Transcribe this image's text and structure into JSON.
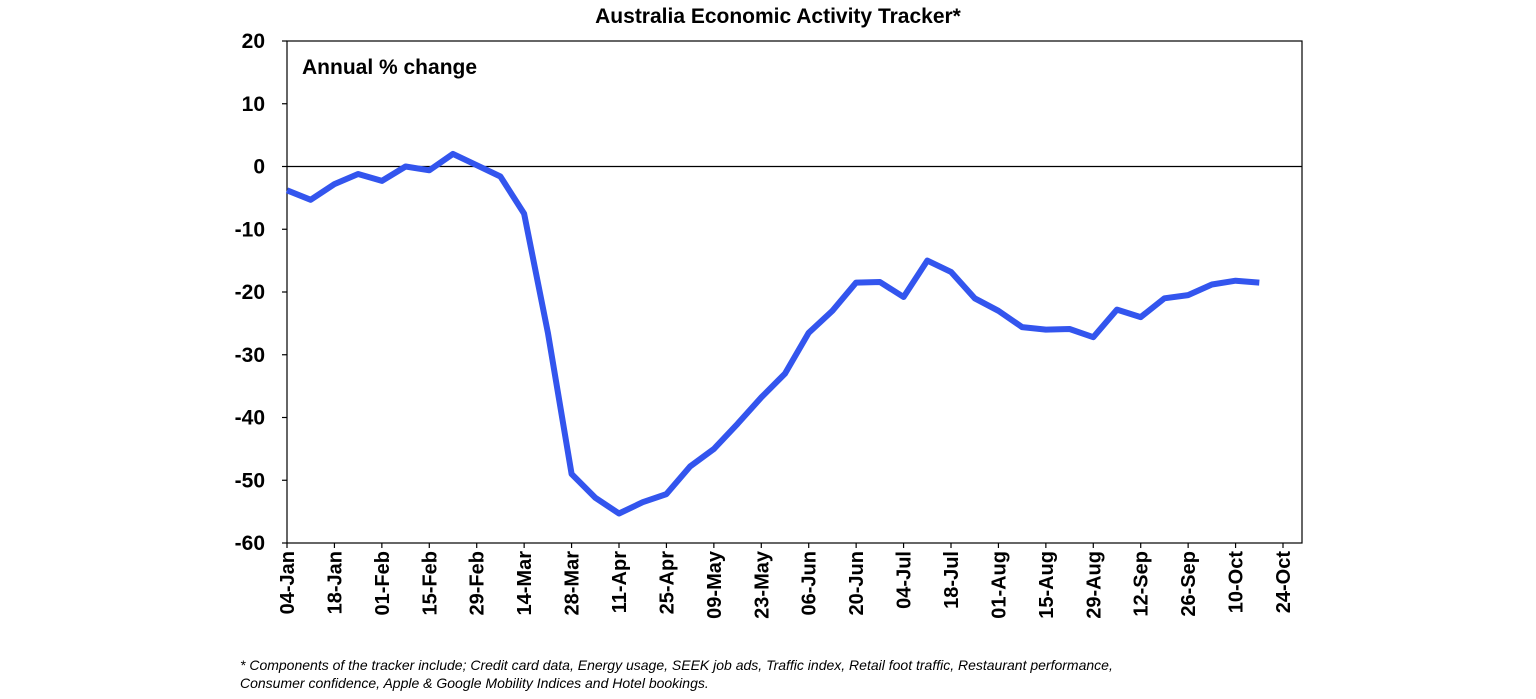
{
  "chart_data": {
    "type": "line",
    "title": "Australia Economic Activity Tracker*",
    "ylabel": "Annual % change",
    "xlabel": "",
    "ylim": [
      -60,
      20
    ],
    "yticks": [
      20,
      10,
      0,
      -10,
      -20,
      -30,
      -40,
      -50,
      -60
    ],
    "xticks": [
      "04-Jan",
      "18-Jan",
      "01-Feb",
      "15-Feb",
      "29-Feb",
      "14-Mar",
      "28-Mar",
      "11-Apr",
      "25-Apr",
      "09-May",
      "23-May",
      "06-Jun",
      "20-Jun",
      "04-Jul",
      "18-Jul",
      "01-Aug",
      "15-Aug",
      "29-Aug",
      "12-Sep",
      "26-Sep",
      "10-Oct",
      "24-Oct"
    ],
    "grid": false,
    "zero_line": true,
    "series": [
      {
        "color": "#3355ee",
        "values": [
          [
            "04-Jan",
            -3.8
          ],
          [
            "11-Jan",
            -5.3
          ],
          [
            "18-Jan",
            -2.8
          ],
          [
            "25-Jan",
            -1.2
          ],
          [
            "01-Feb",
            -2.3
          ],
          [
            "08-Feb",
            0.0
          ],
          [
            "15-Feb",
            -0.6
          ],
          [
            "22-Feb",
            2.0
          ],
          [
            "29-Feb",
            0.2
          ],
          [
            "07-Mar",
            -1.6
          ],
          [
            "14-Mar",
            -7.5
          ],
          [
            "21-Mar",
            -26.5
          ],
          [
            "28-Mar",
            -49.0
          ],
          [
            "04-Apr",
            -52.8
          ],
          [
            "11-Apr",
            -55.3
          ],
          [
            "18-Apr",
            -53.5
          ],
          [
            "25-Apr",
            -52.2
          ],
          [
            "02-May",
            -47.8
          ],
          [
            "09-May",
            -45.0
          ],
          [
            "16-May",
            -41.0
          ],
          [
            "23-May",
            -36.8
          ],
          [
            "30-May",
            -33.0
          ],
          [
            "06-Jun",
            -26.5
          ],
          [
            "13-Jun",
            -23.0
          ],
          [
            "20-Jun",
            -18.5
          ],
          [
            "27-Jun",
            -18.4
          ],
          [
            "04-Jul",
            -20.8
          ],
          [
            "11-Jul",
            -15.0
          ],
          [
            "18-Jul",
            -16.8
          ],
          [
            "25-Jul",
            -21.0
          ],
          [
            "01-Aug",
            -23.0
          ],
          [
            "08-Aug",
            -25.6
          ],
          [
            "15-Aug",
            -26.0
          ],
          [
            "22-Aug",
            -25.9
          ],
          [
            "29-Aug",
            -27.2
          ],
          [
            "05-Sep",
            -22.8
          ],
          [
            "12-Sep",
            -24.0
          ],
          [
            "19-Sep",
            -21.0
          ],
          [
            "26-Sep",
            -20.5
          ],
          [
            "03-Oct",
            -18.8
          ],
          [
            "10-Oct",
            -18.2
          ],
          [
            "17-Oct",
            -18.5
          ]
        ]
      }
    ]
  },
  "footnote": {
    "line1": "* Components of the tracker include; Credit card data, Energy usage, SEEK job ads, Traffic index, Retail foot traffic, Restaurant performance,",
    "line2": "Consumer confidence, Apple & Google Mobility Indices and Hotel bookings."
  }
}
